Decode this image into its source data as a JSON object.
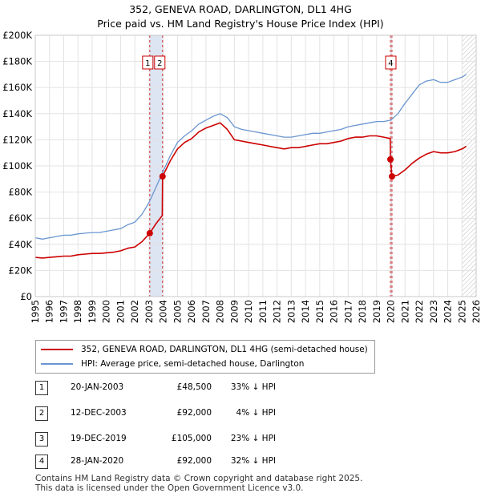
{
  "title_line1": "352, GENEVA ROAD, DARLINGTON, DL1 4HG",
  "title_line2": "Price paid vs. HM Land Registry's House Price Index (HPI)",
  "legend": {
    "property": "352, GENEVA ROAD, DARLINGTON, DL1 4HG (semi-detached house)",
    "hpi": "HPI: Average price, semi-detached house, Darlington"
  },
  "transactions": [
    {
      "num": "1",
      "date": "20-JAN-2003",
      "price": "£48,500",
      "pct": "33% ↓ HPI"
    },
    {
      "num": "2",
      "date": "12-DEC-2003",
      "price": "£92,000",
      "pct": "4% ↓ HPI"
    },
    {
      "num": "3",
      "date": "19-DEC-2019",
      "price": "£105,000",
      "pct": "23% ↓ HPI"
    },
    {
      "num": "4",
      "date": "28-JAN-2020",
      "price": "£92,000",
      "pct": "32% ↓ HPI"
    }
  ],
  "footer": {
    "line1": "Contains HM Land Registry data © Crown copyright and database right 2025.",
    "line2": "This data is licensed under the Open Government Licence v3.0."
  },
  "chart_data": {
    "type": "line",
    "title": "352, GENEVA ROAD, DARLINGTON, DL1 4HG — Price paid vs. HM Land Registry's House Price Index (HPI)",
    "xlabel": "",
    "ylabel": "",
    "xlim": [
      1995,
      2026
    ],
    "ylim": [
      0,
      200000
    ],
    "xticks": [
      1995,
      1996,
      1997,
      1998,
      1999,
      2000,
      2001,
      2002,
      2003,
      2004,
      2005,
      2006,
      2007,
      2008,
      2009,
      2010,
      2011,
      2012,
      2013,
      2014,
      2015,
      2016,
      2017,
      2018,
      2019,
      2020,
      2021,
      2022,
      2023,
      2024,
      2025,
      2026
    ],
    "yticks": [
      0,
      20000,
      40000,
      60000,
      80000,
      100000,
      120000,
      140000,
      160000,
      180000,
      200000
    ],
    "ytick_labels": [
      "£0",
      "£20K",
      "£40K",
      "£60K",
      "£80K",
      "£100K",
      "£120K",
      "£140K",
      "£160K",
      "£180K",
      "£200K"
    ],
    "grid": true,
    "colors": {
      "property": "#cc0000",
      "hpi": "#6a95d0",
      "marker_line": "#cc0000",
      "shade": "#dde4f2"
    },
    "hatch_from": 2025.0,
    "shade_ranges": [
      [
        2003.05,
        2003.95
      ],
      [
        2019.97,
        2020.08
      ]
    ],
    "series": [
      {
        "name": "HPI: Average price, semi-detached house, Darlington",
        "x": [
          1995.0,
          1995.5,
          1996.0,
          1996.5,
          1997.0,
          1997.5,
          1998.0,
          1998.5,
          1999.0,
          1999.5,
          2000.0,
          2000.5,
          2001.0,
          2001.5,
          2002.0,
          2002.5,
          2003.0,
          2003.5,
          2003.95,
          2004.5,
          2005.0,
          2005.5,
          2006.0,
          2006.5,
          2007.0,
          2007.5,
          2008.0,
          2008.5,
          2009.0,
          2009.5,
          2010.0,
          2010.5,
          2011.0,
          2011.5,
          2012.0,
          2012.5,
          2013.0,
          2013.5,
          2014.0,
          2014.5,
          2015.0,
          2015.5,
          2016.0,
          2016.5,
          2017.0,
          2017.5,
          2018.0,
          2018.5,
          2019.0,
          2019.5,
          2020.0,
          2020.5,
          2021.0,
          2021.5,
          2022.0,
          2022.5,
          2023.0,
          2023.5,
          2024.0,
          2024.5,
          2025.0,
          2025.3
        ],
        "values": [
          45000,
          44000,
          45000,
          46000,
          47000,
          47000,
          48000,
          48500,
          49000,
          49000,
          50000,
          51000,
          52000,
          55000,
          57000,
          63000,
          72000,
          84000,
          95000,
          108000,
          118000,
          123000,
          127000,
          132000,
          135000,
          138000,
          140000,
          137000,
          130000,
          128000,
          127000,
          126000,
          125000,
          124000,
          123000,
          122000,
          122000,
          123000,
          124000,
          125000,
          125000,
          126000,
          127000,
          128000,
          130000,
          131000,
          132000,
          133000,
          134000,
          134000,
          135000,
          140000,
          148000,
          155000,
          162000,
          165000,
          166000,
          164000,
          164000,
          166000,
          168000,
          170000
        ]
      },
      {
        "name": "352, GENEVA ROAD, DARLINGTON, DL1 4HG (semi-detached house)",
        "x": [
          1995.0,
          1995.5,
          1996.0,
          1996.5,
          1997.0,
          1997.5,
          1998.0,
          1998.5,
          1999.0,
          1999.5,
          2000.0,
          2000.5,
          2001.0,
          2001.5,
          2002.0,
          2002.5,
          2003.05,
          2003.5,
          2003.93,
          2003.95,
          2004.5,
          2005.0,
          2005.5,
          2006.0,
          2006.5,
          2007.0,
          2007.5,
          2008.0,
          2008.5,
          2009.0,
          2009.5,
          2010.0,
          2010.5,
          2011.0,
          2011.5,
          2012.0,
          2012.5,
          2013.0,
          2013.5,
          2014.0,
          2014.5,
          2015.0,
          2015.5,
          2016.0,
          2016.5,
          2017.0,
          2017.5,
          2018.0,
          2018.5,
          2019.0,
          2019.5,
          2019.96,
          2019.97,
          2020.07,
          2020.08,
          2020.5,
          2021.0,
          2021.5,
          2022.0,
          2022.5,
          2023.0,
          2023.5,
          2024.0,
          2024.5,
          2025.0,
          2025.3
        ],
        "values": [
          30000,
          29500,
          30000,
          30500,
          31000,
          31000,
          32000,
          32500,
          33000,
          33000,
          33500,
          34000,
          35000,
          37000,
          38000,
          42000,
          48500,
          56000,
          62000,
          92000,
          104000,
          113000,
          118000,
          121000,
          126000,
          129000,
          131000,
          133000,
          128000,
          120000,
          119000,
          118000,
          117000,
          116000,
          115000,
          114000,
          113000,
          114000,
          114000,
          115000,
          116000,
          117000,
          117000,
          118000,
          119000,
          121000,
          122000,
          122000,
          123000,
          123000,
          122000,
          121000,
          105000,
          92000,
          92000,
          93000,
          97000,
          102000,
          106000,
          109000,
          111000,
          110000,
          110000,
          111000,
          113000,
          115000
        ]
      }
    ],
    "sale_points": [
      {
        "num": "1",
        "x": 2003.05,
        "y": 48500
      },
      {
        "num": "2",
        "x": 2003.95,
        "y": 92000
      },
      {
        "num": "3",
        "x": 2019.97,
        "y": 105000
      },
      {
        "num": "4",
        "x": 2020.08,
        "y": 92000
      }
    ],
    "annotations": [
      {
        "label": "1",
        "x": 2003.05
      },
      {
        "label": "2",
        "x": 2003.95
      },
      {
        "label": "4",
        "x": 2020.08
      }
    ]
  }
}
